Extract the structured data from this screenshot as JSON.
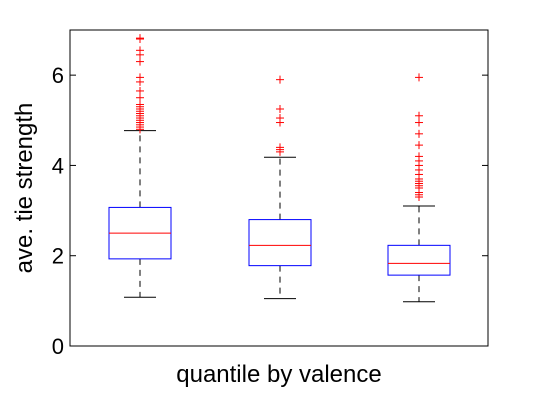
{
  "chart_data": {
    "type": "box",
    "xlabel": "quantile by valence",
    "ylabel": "ave. tie strength",
    "ylim": [
      0,
      7.0
    ],
    "yticks": [
      0,
      2,
      4,
      6
    ],
    "grid": false,
    "colors": {
      "box": "#0000ff",
      "median": "#ff0000",
      "whisker": "#000000",
      "outlier": "#ff0000",
      "axis": "#000000"
    },
    "boxes": [
      {
        "q1": 1.93,
        "median": 2.5,
        "q3": 3.07,
        "whisker_low": 1.08,
        "whisker_high": 4.77,
        "outliers": [
          4.8,
          4.85,
          4.9,
          4.95,
          5.0,
          5.05,
          5.1,
          5.15,
          5.2,
          5.25,
          5.3,
          5.35,
          5.5,
          5.65,
          5.85,
          5.95,
          6.3,
          6.45,
          6.55,
          6.8,
          6.82
        ]
      },
      {
        "q1": 1.78,
        "median": 2.23,
        "q3": 2.8,
        "whisker_low": 1.05,
        "whisker_high": 4.18,
        "outliers": [
          4.3,
          4.35,
          4.4,
          4.95,
          5.05,
          5.25,
          5.9
        ]
      },
      {
        "q1": 1.57,
        "median": 1.83,
        "q3": 2.23,
        "whisker_low": 0.98,
        "whisker_high": 3.1,
        "outliers": [
          3.3,
          3.35,
          3.4,
          3.5,
          3.55,
          3.6,
          3.65,
          3.7,
          3.8,
          3.9,
          4.0,
          4.1,
          4.2,
          4.45,
          4.7,
          4.95,
          5.1,
          5.95
        ]
      }
    ]
  }
}
